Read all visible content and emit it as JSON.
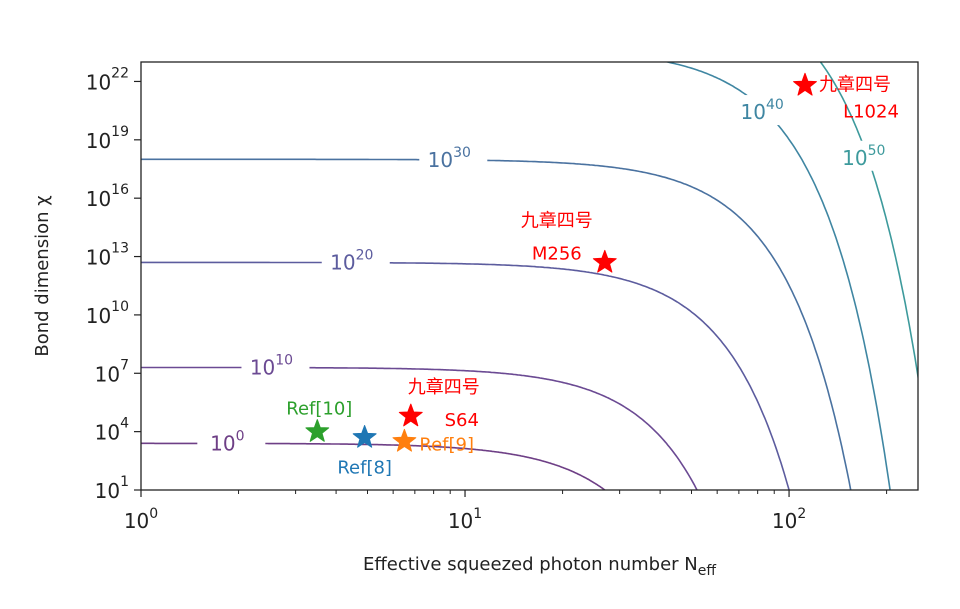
{
  "chart_data": {
    "type": "contour",
    "xlabel": "Effective squeezed photon number N",
    "xlabel_sub": "eff",
    "ylabel": "Bond dimension χ",
    "x_scale": "log",
    "y_scale": "log",
    "xlim": [
      1,
      250
    ],
    "ylim_exp": [
      1,
      23
    ],
    "x_ticks": [
      {
        "base": "10",
        "exp": "0",
        "value": 1
      },
      {
        "base": "10",
        "exp": "1",
        "value": 10
      },
      {
        "base": "10",
        "exp": "2",
        "value": 100
      }
    ],
    "y_ticks": [
      {
        "base": "10",
        "exp": "1",
        "value_exp": 1
      },
      {
        "base": "10",
        "exp": "4",
        "value_exp": 4
      },
      {
        "base": "10",
        "exp": "7",
        "value_exp": 7
      },
      {
        "base": "10",
        "exp": "10",
        "value_exp": 10
      },
      {
        "base": "10",
        "exp": "13",
        "value_exp": 13
      },
      {
        "base": "10",
        "exp": "16",
        "value_exp": 16
      },
      {
        "base": "10",
        "exp": "19",
        "value_exp": 19
      },
      {
        "base": "10",
        "exp": "22",
        "value_exp": 22
      }
    ],
    "contours": [
      {
        "base": "10",
        "exp": "0",
        "color": "#6e3f86",
        "plateau_exp": 3.4,
        "knee_x": 27,
        "label_x": 1.9
      },
      {
        "base": "10",
        "exp": "10",
        "color": "#6b4a93",
        "plateau_exp": 7.3,
        "knee_x": 52,
        "label_x": 2.6
      },
      {
        "base": "10",
        "exp": "20",
        "color": "#5c5c9e",
        "plateau_exp": 12.7,
        "knee_x": 100,
        "label_x": 4.6
      },
      {
        "base": "10",
        "exp": "30",
        "color": "#4a72a0",
        "plateau_exp": 18.0,
        "knee_x": 155,
        "label_x": 9.2
      },
      {
        "base": "10",
        "exp": "40",
        "color": "#3f86a2",
        "plateau_exp": 23.7,
        "knee_x": 205,
        "label_x": 85
      },
      {
        "base": "10",
        "exp": "50",
        "color": "#3d9a9c",
        "plateau_exp": 27.5,
        "knee_x": 280,
        "label_x": 175
      }
    ],
    "points": [
      {
        "label": "九章四号",
        "label2": "L1024",
        "x": 112,
        "y_exp": 21.8,
        "color": "#ff0000"
      },
      {
        "label": "九章四号",
        "label2": "M256",
        "x": 27,
        "y_exp": 12.7,
        "color": "#ff0000"
      },
      {
        "label": "九章四号",
        "label2": "S64",
        "x": 6.8,
        "y_exp": 4.8,
        "color": "#ff0000"
      },
      {
        "label": "Ref[10]",
        "label2": "",
        "x": 3.5,
        "y_exp": 4.0,
        "color": "#2ca02c"
      },
      {
        "label": "Ref[8]",
        "label2": "",
        "x": 4.9,
        "y_exp": 3.7,
        "color": "#1f77b4"
      },
      {
        "label": "Ref[9]",
        "label2": "",
        "x": 6.5,
        "y_exp": 3.5,
        "color": "#ff7f0e"
      }
    ]
  }
}
